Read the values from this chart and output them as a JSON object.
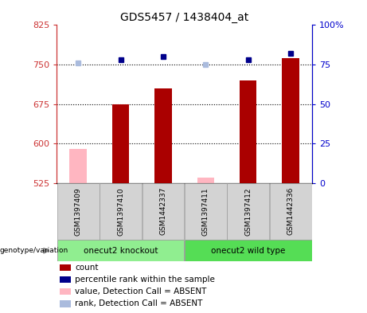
{
  "title": "GDS5457 / 1438404_at",
  "samples": [
    "GSM1397409",
    "GSM1397410",
    "GSM1442337",
    "GSM1397411",
    "GSM1397412",
    "GSM1442336"
  ],
  "bar_values": [
    590,
    675,
    705,
    535,
    720,
    762
  ],
  "bar_color_present": "#AA0000",
  "bar_color_absent": "#FFB6C1",
  "is_absent": [
    true,
    false,
    false,
    true,
    false,
    false
  ],
  "rank_values": [
    76,
    78,
    80,
    75,
    78,
    82
  ],
  "rank_color_present": "#00008B",
  "rank_color_absent": "#AABBDD",
  "ylim_left": [
    525,
    825
  ],
  "ylim_right": [
    0,
    100
  ],
  "yticks_left": [
    525,
    600,
    675,
    750,
    825
  ],
  "yticks_right": [
    0,
    25,
    50,
    75,
    100
  ],
  "ytick_labels_right": [
    "0",
    "25",
    "50",
    "75",
    "100%"
  ],
  "hlines": [
    600,
    675,
    750
  ],
  "left_axis_color": "#CC3333",
  "right_axis_color": "#0000CC",
  "group_defs": [
    {
      "label": "onecut2 knockout",
      "start": 0,
      "end": 2,
      "color": "#90EE90"
    },
    {
      "label": "onecut2 wild type",
      "start": 3,
      "end": 5,
      "color": "#55DD55"
    }
  ],
  "legend_items": [
    {
      "color": "#AA0000",
      "label": "count"
    },
    {
      "color": "#00008B",
      "label": "percentile rank within the sample"
    },
    {
      "color": "#FFB6C1",
      "label": "value, Detection Call = ABSENT"
    },
    {
      "color": "#AABBDD",
      "label": "rank, Detection Call = ABSENT"
    }
  ]
}
